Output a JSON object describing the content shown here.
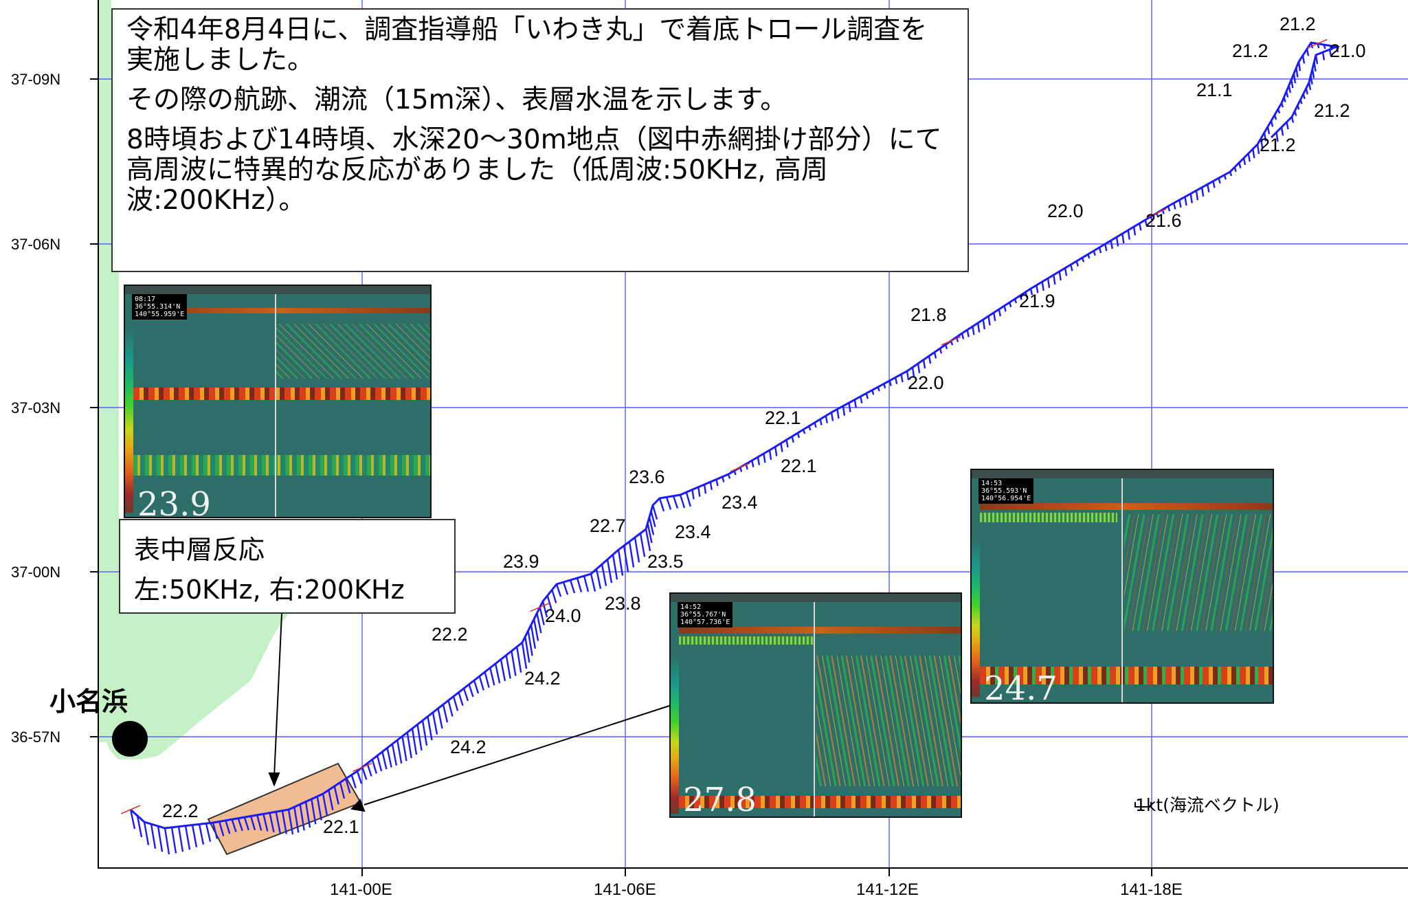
{
  "info_box": {
    "line1": "令和4年8月4日に、調査指導船「いわき丸」で着底トロール調査を実施しました。",
    "line2": "その際の航跡、潮流（15m深）、表層水温を示します。",
    "line3": "8時頃および14時頃、水深20〜30m地点（図中赤網掛け部分）にて高周波に特異的な反応がありました（低周波:50KHz, 高周波:200KHz）。"
  },
  "lat_labels": [
    "37-09N",
    "37-06N",
    "37-03N",
    "37-00N",
    "36-57N"
  ],
  "lon_labels": [
    "141-00E",
    "141-06E",
    "141-12E",
    "141-18E"
  ],
  "temperature_labels": [
    "21.2",
    "21.2",
    "21.0",
    "21.1",
    "21.2",
    "21.2",
    "22.0",
    "21.6",
    "21.8",
    "21.9",
    "22.0",
    "22.1",
    "22.1",
    "23.6",
    "23.4",
    "23.4",
    "22.7",
    "23.9",
    "23.5",
    "23.8",
    "24.0",
    "22.2",
    "24.2",
    "24.2",
    "22.2",
    "22.1"
  ],
  "place_name": "小名浜",
  "callout": {
    "title": "表中層反応",
    "subtitle": "左:50KHz, 右:200KHz"
  },
  "echograms": [
    {
      "reading": "23.9",
      "coords": [
        "08:17",
        "36°55.314'N",
        "140°55.959'E"
      ]
    },
    {
      "reading": "27.8",
      "coords": [
        "14:52",
        "36°55.767'N",
        "140°57.736'E"
      ]
    },
    {
      "reading": "24.7",
      "coords": [
        "14:53",
        "36°55.593'N",
        "140°56.954'E"
      ]
    }
  ],
  "scale_note": "1kt(海流ベクトル)",
  "colors": {
    "land": "#c6f0c6",
    "track": "#1a1aff",
    "highlight": "#f2bc92",
    "grid": "#5a5aff"
  }
}
